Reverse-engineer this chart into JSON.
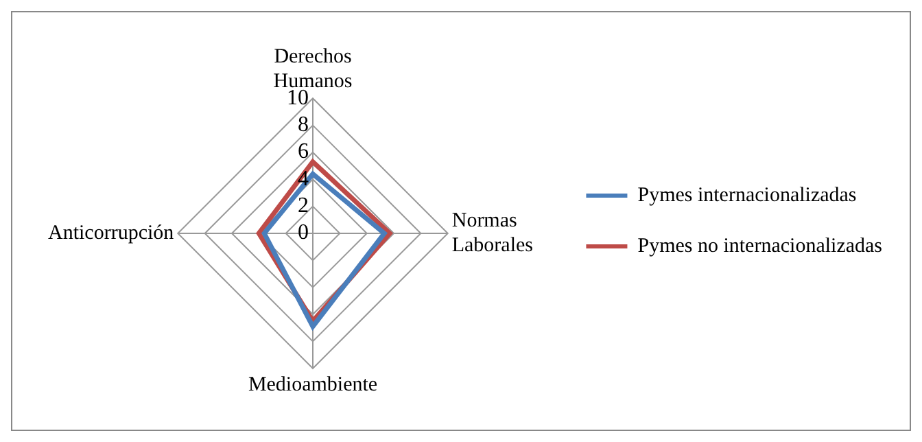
{
  "chart_data": {
    "type": "radar",
    "categories": [
      "Derechos Humanos",
      "Normas Laborales",
      "Medioambiente",
      "Anticorrupción"
    ],
    "series": [
      {
        "name": "Pymes internacionalizadas",
        "color": "#4a7ebb",
        "values": [
          4.4,
          5.3,
          6.9,
          3.6
        ]
      },
      {
        "name": "Pymes no internacionalizadas",
        "color": "#be4b48",
        "values": [
          5.3,
          5.7,
          6.5,
          4.0
        ]
      }
    ],
    "ylim": [
      0,
      10
    ],
    "yticks": [
      0,
      2,
      4,
      6,
      8,
      10
    ],
    "grid": true,
    "legend": "right",
    "marker": "none"
  }
}
